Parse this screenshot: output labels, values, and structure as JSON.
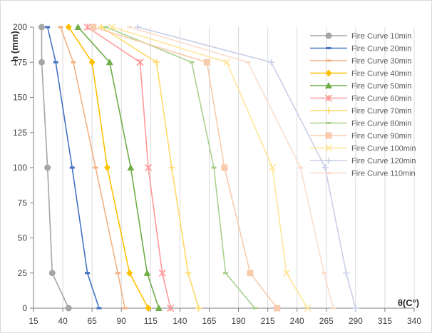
{
  "chart_data": {
    "type": "line",
    "title": "",
    "xlabel": "θ(C°)",
    "ylabel": "h (mm)",
    "xlim": [
      15,
      340
    ],
    "ylim": [
      0,
      200
    ],
    "xticks": [
      15,
      40,
      65,
      90,
      115,
      140,
      165,
      190,
      215,
      240,
      265,
      290,
      315,
      340
    ],
    "yticks": [
      0,
      25,
      50,
      75,
      100,
      125,
      150,
      175,
      200
    ],
    "grid": "vertical",
    "legend_position": "right",
    "series": [
      {
        "name": "Fire Curve 10min",
        "color": "#a5a5a5",
        "marker": "circle",
        "points": [
          [
            22,
            200
          ],
          [
            22,
            175
          ],
          [
            27,
            100
          ],
          [
            31,
            25
          ],
          [
            45,
            0
          ]
        ]
      },
      {
        "name": "Fire Curve 20min",
        "color": "#4472c4",
        "marker": "dash",
        "points": [
          [
            27,
            200
          ],
          [
            34,
            175
          ],
          [
            48,
            100
          ],
          [
            61,
            25
          ],
          [
            71,
            0
          ]
        ]
      },
      {
        "name": "Fire Curve 30min",
        "color": "#f4b183",
        "marker": "dash",
        "points": [
          [
            38,
            200
          ],
          [
            49,
            175
          ],
          [
            68,
            100
          ],
          [
            87,
            25
          ],
          [
            93,
            0
          ]
        ]
      },
      {
        "name": "Fire Curve 40min",
        "color": "#ffc000",
        "marker": "diamond",
        "points": [
          [
            45,
            200
          ],
          [
            65,
            175
          ],
          [
            78,
            100
          ],
          [
            97,
            25
          ],
          [
            113,
            0
          ]
        ]
      },
      {
        "name": "Fire Curve 50min",
        "color": "#70ad47",
        "marker": "triangle",
        "points": [
          [
            53,
            200
          ],
          [
            80,
            175
          ],
          [
            98,
            100
          ],
          [
            112,
            25
          ],
          [
            122,
            0
          ]
        ]
      },
      {
        "name": "Fire Curve 60min",
        "color": "#ff9999",
        "marker": "star",
        "points": [
          [
            61,
            200
          ],
          [
            106,
            175
          ],
          [
            113,
            100
          ],
          [
            125,
            25
          ],
          [
            132,
            0
          ]
        ]
      },
      {
        "name": "Fire Curve 70min",
        "color": "#ffd966",
        "marker": "plus",
        "points": [
          [
            73,
            200
          ],
          [
            120,
            175
          ],
          [
            133,
            100
          ],
          [
            147,
            25
          ],
          [
            156,
            0
          ]
        ]
      },
      {
        "name": "Fire Curve 80min",
        "color": "#a9d18e",
        "marker": "dash",
        "points": [
          [
            77,
            200
          ],
          [
            150,
            175
          ],
          [
            169,
            100
          ],
          [
            179,
            25
          ],
          [
            204,
            0
          ]
        ]
      },
      {
        "name": "Fire Curve 90min",
        "color": "#f8cbad",
        "marker": "square",
        "points": [
          [
            66,
            200
          ],
          [
            163,
            175
          ],
          [
            178,
            100
          ],
          [
            200,
            25
          ],
          [
            223,
            0
          ]
        ]
      },
      {
        "name": "Fire Curve 100min",
        "color": "#ffe699",
        "marker": "x",
        "points": [
          [
            82,
            200
          ],
          [
            180,
            175
          ],
          [
            219,
            100
          ],
          [
            231,
            25
          ],
          [
            249,
            0
          ]
        ]
      },
      {
        "name": "Fire Curve 120min",
        "color": "#c9cfe8",
        "marker": "plus",
        "points": [
          [
            104,
            200
          ],
          [
            218,
            175
          ],
          [
            264,
            100
          ],
          [
            282,
            25
          ],
          [
            290,
            0
          ]
        ]
      },
      {
        "name": "Fire Curve 110min",
        "color": "#fbdccc",
        "marker": "dash",
        "points": [
          [
            97,
            200
          ],
          [
            198,
            175
          ],
          [
            243,
            100
          ],
          [
            263,
            25
          ],
          [
            271,
            0
          ]
        ]
      }
    ]
  }
}
